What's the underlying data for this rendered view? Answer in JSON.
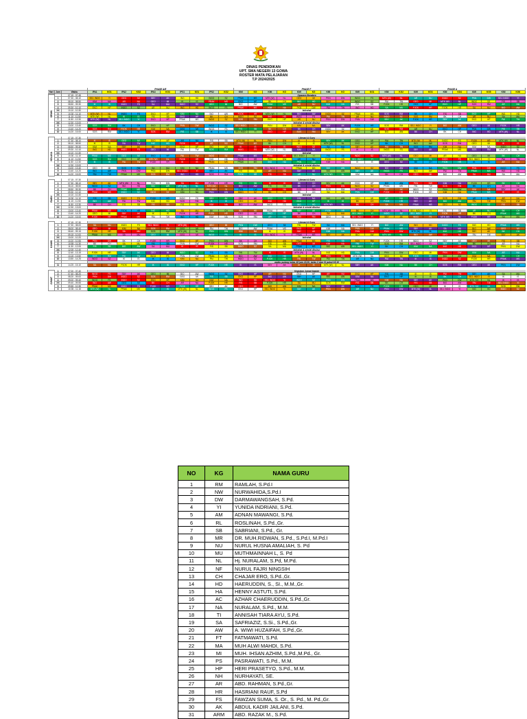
{
  "header": {
    "lines": [
      "DINAS PENDIDIKAN",
      "UPT. SMA NEGERI 13 GOWA",
      "ROSTER MATA PELAJARAN",
      "T.P 2024/2025"
    ]
  },
  "roster": {
    "col_headers": {
      "hari": "Hari",
      "jam": "Jam",
      "waktu": "Waktu"
    },
    "groups": [
      "PHASE A/E",
      "PHASE F",
      "PHASE A"
    ],
    "classes": [
      "IPA1",
      "KG1",
      "IPA2",
      "KG2",
      "IPA3",
      "KG3",
      "IPS1",
      "KG1",
      "IPS2",
      "KG2",
      "KMI",
      "KG",
      "KMI",
      "KG",
      "KMI",
      "KG",
      "KMI",
      "KG",
      "KMI",
      "KG1",
      "KMI",
      "KG2",
      "KMI",
      "KG3",
      "KMI",
      "KG4",
      "KMI",
      "KG5",
      "KMI",
      "KG6"
    ],
    "palette": {
      "yellow": "#ffff00",
      "red": "#ff0000",
      "green": "#00b050",
      "blue": "#00b0f0",
      "purple": "#7030a0",
      "orange": "#ffc000",
      "lime": "#92d050",
      "pink": "#ff66cc",
      "navy": "#2f5496",
      "white": "#ffffff",
      "brown": "#c65911",
      "teal": "#00b0a0",
      "dark": "#203864"
    },
    "days": [
      {
        "name": "SENIN",
        "rows": [
          {
            "jam": "",
            "waktu": "07.15 - 07.45",
            "note": "Upacara Bendera"
          },
          {
            "jam": "1",
            "waktu": "07.30 - 08.10"
          },
          {
            "jam": "2",
            "waktu": "08.10 - 08.50"
          },
          {
            "jam": "3",
            "waktu": "08.50 - 09.30"
          },
          {
            "jam": "4",
            "waktu": "09.30 - 10.10"
          },
          {
            "jam": "XX",
            "waktu": "10.10 - 10.30",
            "note": "Istirahat"
          },
          {
            "jam": "5",
            "waktu": "10.30 - 11.10"
          },
          {
            "jam": "6",
            "waktu": "11.10 - 11.50"
          },
          {
            "jam": "7",
            "waktu": "11.50 - 12.30"
          },
          {
            "jam": "XX",
            "waktu": "12.30 - 13.00",
            "note": "Istirahat & sholat dhuhur"
          },
          {
            "jam": "8",
            "waktu": "13.00 - 13.40"
          },
          {
            "jam": "9",
            "waktu": "13.40 - 14.20"
          },
          {
            "jam": "10",
            "waktu": "14.20 - 15.00"
          }
        ]
      },
      {
        "name": "SELASA",
        "rows": [
          {
            "jam": "",
            "waktu": "07.15 - 07.30",
            "note": "Literasi & Guru"
          },
          {
            "jam": "1",
            "waktu": "07.30 - 08.10"
          },
          {
            "jam": "2",
            "waktu": "08.10 - 08.50"
          },
          {
            "jam": "3",
            "waktu": "08.50 - 09.30"
          },
          {
            "jam": "4",
            "waktu": "09.30 - 10.10"
          },
          {
            "jam": "XX",
            "waktu": "10.10 - 10.30",
            "note": "Istirahat"
          },
          {
            "jam": "5",
            "waktu": "10.30 - 11.10"
          },
          {
            "jam": "6",
            "waktu": "11.10 - 11.50"
          },
          {
            "jam": "7",
            "waktu": "11.50 - 12.30"
          },
          {
            "jam": "XX",
            "waktu": "12.30 - 13.00",
            "note": "Istirahat & sholat dhuhur"
          },
          {
            "jam": "8",
            "waktu": "13.00 - 13.40"
          },
          {
            "jam": "9",
            "waktu": "13.40 - 14.20"
          },
          {
            "jam": "10",
            "waktu": "14.20 - 15.00"
          }
        ]
      },
      {
        "name": "RABU",
        "rows": [
          {
            "jam": "",
            "waktu": "07.15 - 07.30",
            "note": "Literasi & Guru"
          },
          {
            "jam": "1",
            "waktu": "07.30 - 08.10"
          },
          {
            "jam": "2",
            "waktu": "08.10 - 08.50"
          },
          {
            "jam": "3",
            "waktu": "08.50 - 09.30"
          },
          {
            "jam": "4",
            "waktu": "09.30 - 10.10"
          },
          {
            "jam": "XX",
            "waktu": "10.10 - 10.30",
            "note": "Istirahat"
          },
          {
            "jam": "5",
            "waktu": "10.30 - 11.10"
          },
          {
            "jam": "6",
            "waktu": "11.10 - 11.50"
          },
          {
            "jam": "7",
            "waktu": "11.50 - 12.30"
          },
          {
            "jam": "XX",
            "waktu": "12.30 - 13.00",
            "note": "Istirahat & sholat dhuhur"
          },
          {
            "jam": "8",
            "waktu": "13.00 - 13.40"
          },
          {
            "jam": "9",
            "waktu": "13.40 - 14.20"
          },
          {
            "jam": "10",
            "waktu": "14.20 - 15.00"
          }
        ]
      },
      {
        "name": "KAMIS",
        "rows": [
          {
            "jam": "",
            "waktu": "07.15 - 07.30",
            "note": "Literasi & Guru"
          },
          {
            "jam": "1",
            "waktu": "07.30 - 08.00"
          },
          {
            "jam": "2",
            "waktu": "08.00 - 08.40"
          },
          {
            "jam": "3",
            "waktu": "08.40 - 09.15"
          },
          {
            "jam": "4",
            "waktu": "09.15 - 10.00"
          },
          {
            "jam": "XX",
            "waktu": "10.00 - 10.20",
            "note": "Istirahat"
          },
          {
            "jam": "5",
            "waktu": "10.20 - 10.55"
          },
          {
            "jam": "6",
            "waktu": "10.55 - 11.30"
          },
          {
            "jam": "7",
            "waktu": "11.30 - 12.05"
          },
          {
            "jam": "XX",
            "waktu": "12.05 - 12.40",
            "note": "Istirahat & sholat dhuhur"
          },
          {
            "jam": "8",
            "waktu": "12.40 - 13.15"
          },
          {
            "jam": "9",
            "waktu": "13.15 - 13.50"
          },
          {
            "jam": "10",
            "waktu": "13.50 - 14.25"
          },
          {
            "jam": "",
            "waktu": "",
            "note": "waktu pulang kelas XII jam 15.00, kelas X dan XI pukul 15.10"
          },
          {
            "jam": "11",
            "waktu": "14.25 - 15.10"
          }
        ]
      },
      {
        "name": "JUMAT",
        "rows": [
          {
            "jam": "1",
            "waktu": "07.00 - 07.40",
            "note": "Kegiatan Jumat Ibadah"
          },
          {
            "jam": "2",
            "waktu": "07.40 - 08.20"
          },
          {
            "jam": "3",
            "waktu": "08.20 - 09.00"
          },
          {
            "jam": "4",
            "waktu": "09.00 - 09.40"
          },
          {
            "jam": "XX",
            "waktu": "09.40 - 09.55"
          },
          {
            "jam": "5",
            "waktu": "09.55 - 10.35"
          },
          {
            "jam": "6",
            "waktu": "10.35 - 11.15"
          }
        ]
      }
    ],
    "tokens": [
      "PJOK",
      "HR",
      "MTK (W)",
      "NL",
      "BIO",
      "AW",
      "PKN",
      "DW",
      "GEO",
      "MI",
      "KIM",
      "NA",
      "IK",
      "IS",
      "EKO",
      "HP",
      "INDO",
      "SZ",
      "INGG",
      "FS",
      "SBY",
      "AK",
      "SEJ. INDO",
      "YI",
      "FIS",
      "SB",
      "PAI",
      "TW",
      "SOS",
      "RM",
      "PRAK",
      "MS",
      "SA",
      "MU",
      "ING",
      "HD",
      "BK",
      "CH",
      "AR",
      "NU"
    ],
    "colors": [
      "yellow",
      "red",
      "green",
      "blue",
      "purple",
      "orange",
      "lime",
      "pink",
      "white",
      "brown",
      "teal"
    ]
  },
  "guru": {
    "headers": [
      "NO",
      "KG",
      "NAMA GURU"
    ],
    "rows": [
      [
        "1",
        "RM",
        "RAMLAH, S.Pd.I"
      ],
      [
        "2",
        "NW",
        "NURWAHIDA,S.Pd.I"
      ],
      [
        "3",
        "DW",
        "DARMAWANGSAH, S.Pd."
      ],
      [
        "4",
        "YI",
        "YUNIDA INDRIANI, S.Pd."
      ],
      [
        "5",
        "AM",
        "ADNAN MAWANGI, S.Pd."
      ],
      [
        "6",
        "RL",
        "ROSLINAH, S.Pd.,Gr."
      ],
      [
        "7",
        "SB",
        "SABRIANI, S.Pd., Gr."
      ],
      [
        "8",
        "MR",
        "DR. MUH.RIDWAN, S.Pd., S.Pd.I, M.Pd.I"
      ],
      [
        "9",
        "NU",
        "NURUL HUSNA AMALIAH, S. Pd"
      ],
      [
        "10",
        "MU",
        "MUTHMAINNAH L, S. Pd"
      ],
      [
        "11",
        "NL",
        "Hj. NURALAM, S.Pd, M.Pd."
      ],
      [
        "12",
        "NF",
        "NURUL FAJRI NINGSIH"
      ],
      [
        "13",
        "CH",
        "CHAJAR ERO, S.Pd.,Gr."
      ],
      [
        "14",
        "HD",
        "HAERUDDIN, S., SI., M.M.,Gr."
      ],
      [
        "15",
        "HA",
        "HENNY ASTUTI, S.Pd."
      ],
      [
        "16",
        "AC",
        "AZHAR CHAERUDDIN, S.Pd.,Gr."
      ],
      [
        "17",
        "NA",
        "NURALAM, S.Pd., M.M."
      ],
      [
        "18",
        "TI",
        "ANNISAH TIARA AYU, S.Pd."
      ],
      [
        "19",
        "SA",
        "SAFRIAZIZ, S.Si., S.Pd.,Gr."
      ],
      [
        "20",
        "AW",
        "A. WIWI HUZAIFAH, S.Pd.,Gr."
      ],
      [
        "21",
        "FT",
        "FATMAWATI, S.Pd."
      ],
      [
        "22",
        "MA",
        "MUH ALWI MAHDI, S.Pd."
      ],
      [
        "23",
        "MI",
        "MUH. IHSAN AZHIM, S.Pd.,M.Pd., Gr."
      ],
      [
        "24",
        "PS",
        "PASRAWATI, S.Pd., M.M."
      ],
      [
        "25",
        "HP",
        "HERI PRASETYO, S.Pd., M.M."
      ],
      [
        "26",
        "NH",
        "NURHAYATI, SE."
      ],
      [
        "27",
        "AR",
        "ABD. RAHMAN, S.Pd.,Gr."
      ],
      [
        "28",
        "HR",
        "HASRIANI RAUF, S.Pd"
      ],
      [
        "29",
        "FS",
        "FAWZAN SUMA, S. Or., S. Pd., M. Pd.,Gr."
      ],
      [
        "30",
        "AK",
        "ABDUL KADIR JAILANI, S.Pd."
      ],
      [
        "31",
        "ARM",
        "ABD. RAZAK M., S.Pd."
      ]
    ]
  }
}
